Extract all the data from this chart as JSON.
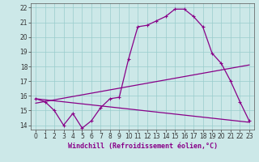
{
  "xlabel": "Windchill (Refroidissement éolien,°C)",
  "bg_color": "#cce8e8",
  "line_color": "#880088",
  "grid_color": "#99cccc",
  "x_ticks": [
    0,
    1,
    2,
    3,
    4,
    5,
    6,
    7,
    8,
    9,
    10,
    11,
    12,
    13,
    14,
    15,
    16,
    17,
    18,
    19,
    20,
    21,
    22,
    23
  ],
  "y_ticks": [
    14,
    15,
    16,
    17,
    18,
    19,
    20,
    21,
    22
  ],
  "xlim": [
    -0.5,
    23.5
  ],
  "ylim": [
    13.7,
    22.3
  ],
  "line1_x": [
    0,
    1,
    2,
    3,
    4,
    5,
    6,
    7,
    8,
    9,
    10,
    11,
    12,
    13,
    14,
    15,
    16,
    17,
    18,
    19,
    20,
    21,
    22,
    23
  ],
  "line1_y": [
    15.8,
    15.6,
    15.0,
    14.0,
    14.8,
    13.8,
    14.3,
    15.2,
    15.8,
    15.9,
    18.5,
    20.7,
    20.8,
    21.1,
    21.4,
    21.9,
    21.9,
    21.4,
    20.7,
    18.9,
    18.2,
    17.0,
    15.6,
    14.3
  ],
  "line2_x": [
    0,
    23
  ],
  "line2_y": [
    15.8,
    14.2
  ],
  "line3_x": [
    0,
    23
  ],
  "line3_y": [
    15.5,
    18.1
  ],
  "tick_fontsize": 5.5,
  "xlabel_fontsize": 6.0
}
